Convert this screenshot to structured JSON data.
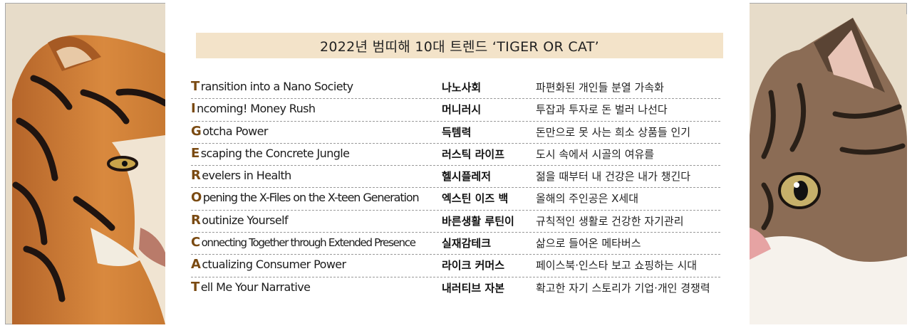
{
  "title": "2022년 범띠해 10대 트렌드 ‘TIGER OR CAT’",
  "trends": [
    {
      "letter": "T",
      "rest": "ransition into a Nano Society",
      "korean": "나노사회",
      "description": "파편화된 개인들 분열 가속화"
    },
    {
      "letter": "I",
      "rest": "ncoming! Money Rush",
      "korean": "머니러시",
      "description": "투잡과 투자로 돈 벌러 나선다"
    },
    {
      "letter": "G",
      "rest": "otcha Power",
      "korean": "득템력",
      "description": "돈만으로 못 사는 희소 상품들 인기"
    },
    {
      "letter": "E",
      "rest": "scaping the Concrete Jungle",
      "korean": "러스틱 라이프",
      "description": "도시 속에서 시골의 여유를"
    },
    {
      "letter": "R",
      "rest": "evelers in Health",
      "korean": "헬시플레저",
      "description": "젊을 때부터 내 건강은 내가 챙긴다"
    },
    {
      "letter": "O",
      "rest": "pening the X-Files on the X-teen Generation",
      "korean": "엑스틴 이즈 백",
      "description": "올해의 주인공은 X세대"
    },
    {
      "letter": "R",
      "rest": "outinize Yourself",
      "korean": "바른생활 루틴이",
      "description": "규칙적인 생활로 건강한 자기관리"
    },
    {
      "letter": "C",
      "rest": "onnecting Together through Extended Presence",
      "korean": "실재감테크",
      "description": "삶으로 들어온 메타버스"
    },
    {
      "letter": "A",
      "rest": "ctualizing Consumer Power",
      "korean": "라이크 커머스",
      "description": "페이스북·인스타 보고 쇼핑하는 시대"
    },
    {
      "letter": "T",
      "rest": "ell Me Your Narrative",
      "korean": "내러티브 자본",
      "description": "확고한 자기 스토리가 기업·개인 경쟁력"
    }
  ],
  "colors": {
    "accent_letter": "#7a4a12",
    "title_bar": "#f3e3c9",
    "frame": "#e7dcc9"
  },
  "images": {
    "left": "tiger-face-photo",
    "right": "cat-face-photo"
  }
}
